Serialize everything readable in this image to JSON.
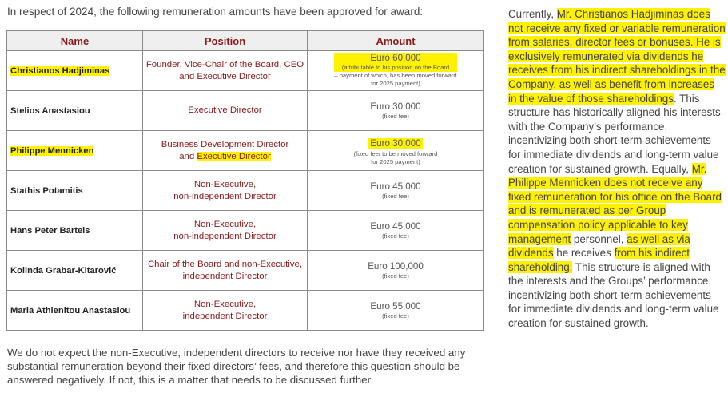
{
  "intro": "In respect of 2024, the following remuneration amounts have been approved for award:",
  "table": {
    "headers": {
      "name": "Name",
      "position": "Position",
      "amount": "Amount"
    },
    "rows": [
      {
        "name": "Christianos Hadjiminas",
        "position_1": "Founder, Vice-Chair of the Board, CEO",
        "position_2": "and Executive Director",
        "amount": "Euro 60,000",
        "note_1": "(attributable to his position on the Board",
        "note_2": "– payment of which, has been moved forward",
        "note_3": "for 2025 payment)"
      },
      {
        "name": "Stelios Anastasiou",
        "position_1": "Executive Director",
        "amount": "Euro 30,000",
        "note_1": "(fixed fee)"
      },
      {
        "name": "Philippe Mennicken",
        "position_1": "Business Development Director",
        "position_2a": "and ",
        "position_2b": "Executive Director",
        "amount": "Euro 30,000",
        "note_1": "(fixed fee/ to be moved forward",
        "note_2": "for 2025 payment)"
      },
      {
        "name": "Stathis Potamitis",
        "position_1": "Non-Executive,",
        "position_2": "non-independent Director",
        "amount": "Euro 45,000",
        "note_1": "(fixed fee)"
      },
      {
        "name": "Hans Peter Bartels",
        "position_1": "Non-Executive,",
        "position_2": "non-independent Director",
        "amount": "Euro 45,000",
        "note_1": "(fixed fee)"
      },
      {
        "name": "Kolinda Grabar-Kitarović",
        "position_1": "Chair of the Board and non-Executive,",
        "position_2": "independent Director",
        "amount": "Euro 100,000",
        "note_1": "(fixed fee)"
      },
      {
        "name": "Maria Athienitou Anastasiou",
        "position_1": "Non-Executive,",
        "position_2": "independent Director",
        "amount": "Euro 55,000",
        "note_1": "(fixed fee)"
      }
    ]
  },
  "outro": "We do not expect the non-Executive, independent directors to receive nor have they received any substantial remuneration beyond their fixed directors’ fees, and therefore this question should be answered negatively. If not, this is a matter that needs to be discussed further.",
  "side": {
    "p1": "Currently, ",
    "h1": "Mr. Christianos Hadjiminas does not receive any fixed or variable remuneration from salaries, director fees or bonuses. He is exclusively remunerated via dividends he receives from his indirect shareholdings in the Company, as well as benefit from increases in the value of those shareholdings",
    "p2": ". This structure has historically aligned his interests with the Company’s performance, incentivizing both short-term achievements for immediate dividends and long-term value creation for sustained growth. Equally, ",
    "h2": "Mr. Philippe Mennicken does not receive any fixed remuneration for his office on the Board and is remunerated as per Group compensation policy applicable to key management",
    "p3": " personnel, ",
    "h3": "as well as via dividends",
    "p4": " he receives ",
    "h4": "from his indirect shareholding.",
    "p5": " This structure is aligned with the interests and the Groups’ performance, incentivizing both short-term achievements for immediate dividends and long-term value creation for sustained growth."
  },
  "colors": {
    "accent": "#8b1a1a",
    "highlight": "#fff200"
  }
}
